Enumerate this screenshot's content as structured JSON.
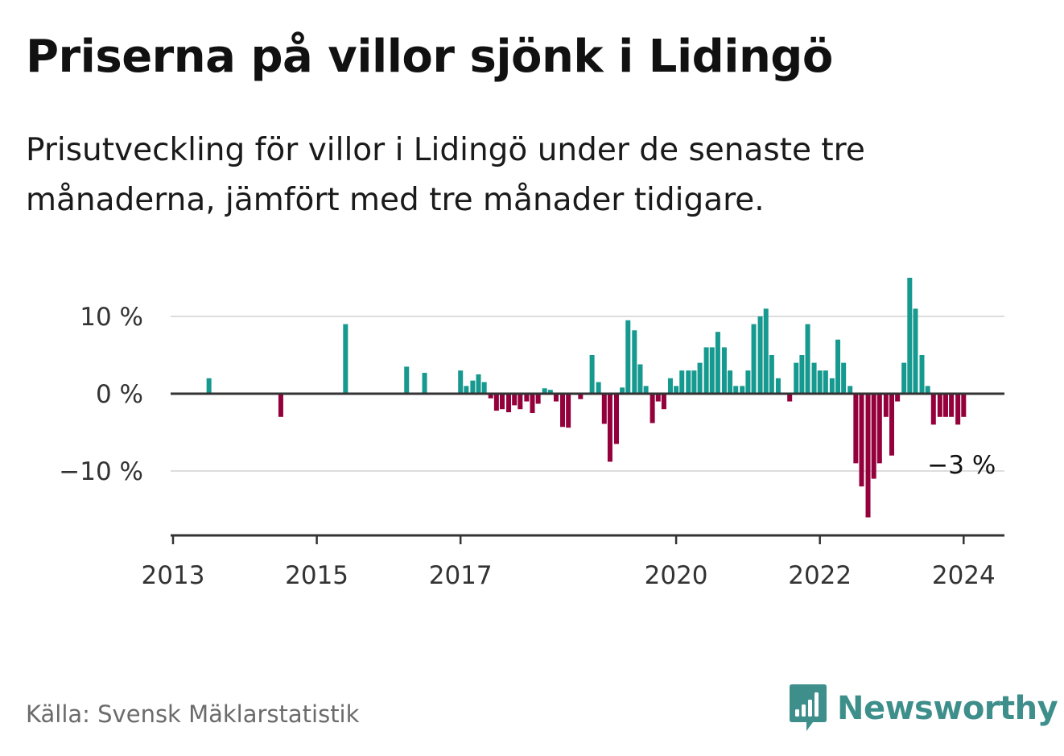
{
  "header": {
    "title": "Priserna på villor sjönk i Lidingö",
    "subtitle": "Prisutveckling för villor i Lidingö under de senaste tre månaderna, jämfört med tre månader tidigare."
  },
  "footer": {
    "source": "Källa: Svensk Mäklarstatistik",
    "brand": "Newsworthy",
    "brand_icon": "newsworthy-logo-icon"
  },
  "colors": {
    "positive": "#16998f",
    "negative": "#94003b",
    "brand": "#3e8f8b",
    "grid": "#dddddd",
    "axis": "#333333"
  },
  "chart_data": {
    "type": "bar",
    "title": "Priserna på villor sjönk i Lidingö",
    "xlabel": "",
    "ylabel": "",
    "ylim": [
      -18,
      16
    ],
    "xlim": [
      2013,
      2024.6
    ],
    "grid": true,
    "y_ticks": [
      {
        "value": 10,
        "label": "10 %"
      },
      {
        "value": 0,
        "label": "0 %"
      },
      {
        "value": -10,
        "label": "−10 %"
      }
    ],
    "x_ticks": [
      {
        "value": 2013,
        "label": "2013"
      },
      {
        "value": 2015,
        "label": "2015"
      },
      {
        "value": 2017,
        "label": "2017"
      },
      {
        "value": 2020,
        "label": "2020"
      },
      {
        "value": 2022,
        "label": "2022"
      },
      {
        "value": 2024,
        "label": "2024"
      }
    ],
    "annotations": [
      {
        "label": "−3 %",
        "anchor": "last-bar",
        "placement": "below-right"
      }
    ],
    "series": [
      {
        "name": "Prisutveckling",
        "points": [
          {
            "x": 2013.5,
            "y": 2
          },
          {
            "x": 2014.5,
            "y": -3
          },
          {
            "x": 2015.4,
            "y": 9
          },
          {
            "x": 2016.25,
            "y": 3.5
          },
          {
            "x": 2016.5,
            "y": 2.7
          },
          {
            "x": 2017.0,
            "y": 3
          },
          {
            "x": 2017.08,
            "y": 1
          },
          {
            "x": 2017.17,
            "y": 1.7
          },
          {
            "x": 2017.25,
            "y": 2.5
          },
          {
            "x": 2017.33,
            "y": 1.5
          },
          {
            "x": 2017.42,
            "y": -0.6
          },
          {
            "x": 2017.5,
            "y": -2.2
          },
          {
            "x": 2017.58,
            "y": -2
          },
          {
            "x": 2017.67,
            "y": -2.4
          },
          {
            "x": 2017.75,
            "y": -1.5
          },
          {
            "x": 2017.83,
            "y": -2
          },
          {
            "x": 2017.92,
            "y": -1
          },
          {
            "x": 2018.0,
            "y": -2.5
          },
          {
            "x": 2018.08,
            "y": -1.3
          },
          {
            "x": 2018.17,
            "y": 0.7
          },
          {
            "x": 2018.25,
            "y": 0.5
          },
          {
            "x": 2018.33,
            "y": -1
          },
          {
            "x": 2018.42,
            "y": -4.3
          },
          {
            "x": 2018.5,
            "y": -4.4
          },
          {
            "x": 2018.67,
            "y": -0.7
          },
          {
            "x": 2018.83,
            "y": 5
          },
          {
            "x": 2018.92,
            "y": 1.5
          },
          {
            "x": 2019.0,
            "y": -3.9
          },
          {
            "x": 2019.08,
            "y": -8.8
          },
          {
            "x": 2019.17,
            "y": -6.5
          },
          {
            "x": 2019.25,
            "y": 0.8
          },
          {
            "x": 2019.33,
            "y": 9.5
          },
          {
            "x": 2019.42,
            "y": 8.2
          },
          {
            "x": 2019.5,
            "y": 3.8
          },
          {
            "x": 2019.58,
            "y": 1
          },
          {
            "x": 2019.67,
            "y": -3.8
          },
          {
            "x": 2019.75,
            "y": -1
          },
          {
            "x": 2019.83,
            "y": -2
          },
          {
            "x": 2019.92,
            "y": 2
          },
          {
            "x": 2020.0,
            "y": 1
          },
          {
            "x": 2020.08,
            "y": 3
          },
          {
            "x": 2020.17,
            "y": 3
          },
          {
            "x": 2020.25,
            "y": 3
          },
          {
            "x": 2020.33,
            "y": 4
          },
          {
            "x": 2020.42,
            "y": 6
          },
          {
            "x": 2020.5,
            "y": 6
          },
          {
            "x": 2020.58,
            "y": 8
          },
          {
            "x": 2020.67,
            "y": 6
          },
          {
            "x": 2020.75,
            "y": 3
          },
          {
            "x": 2020.83,
            "y": 1
          },
          {
            "x": 2020.92,
            "y": 1
          },
          {
            "x": 2021.0,
            "y": 3
          },
          {
            "x": 2021.08,
            "y": 9
          },
          {
            "x": 2021.17,
            "y": 10
          },
          {
            "x": 2021.25,
            "y": 11
          },
          {
            "x": 2021.33,
            "y": 5
          },
          {
            "x": 2021.42,
            "y": 2
          },
          {
            "x": 2021.58,
            "y": -1
          },
          {
            "x": 2021.67,
            "y": 4
          },
          {
            "x": 2021.75,
            "y": 5
          },
          {
            "x": 2021.83,
            "y": 9
          },
          {
            "x": 2021.92,
            "y": 4
          },
          {
            "x": 2022.0,
            "y": 3
          },
          {
            "x": 2022.08,
            "y": 3
          },
          {
            "x": 2022.17,
            "y": 2
          },
          {
            "x": 2022.25,
            "y": 7
          },
          {
            "x": 2022.33,
            "y": 4
          },
          {
            "x": 2022.42,
            "y": 1
          },
          {
            "x": 2022.5,
            "y": -9
          },
          {
            "x": 2022.58,
            "y": -12
          },
          {
            "x": 2022.67,
            "y": -16
          },
          {
            "x": 2022.75,
            "y": -11
          },
          {
            "x": 2022.83,
            "y": -9
          },
          {
            "x": 2022.92,
            "y": -3
          },
          {
            "x": 2023.0,
            "y": -8
          },
          {
            "x": 2023.08,
            "y": -1
          },
          {
            "x": 2023.17,
            "y": 4
          },
          {
            "x": 2023.25,
            "y": 15
          },
          {
            "x": 2023.33,
            "y": 11
          },
          {
            "x": 2023.42,
            "y": 5
          },
          {
            "x": 2023.5,
            "y": 1
          },
          {
            "x": 2023.58,
            "y": -4
          },
          {
            "x": 2023.67,
            "y": -3
          },
          {
            "x": 2023.75,
            "y": -3
          },
          {
            "x": 2023.83,
            "y": -3
          },
          {
            "x": 2023.92,
            "y": -4
          },
          {
            "x": 2024.0,
            "y": -3
          }
        ]
      }
    ]
  }
}
